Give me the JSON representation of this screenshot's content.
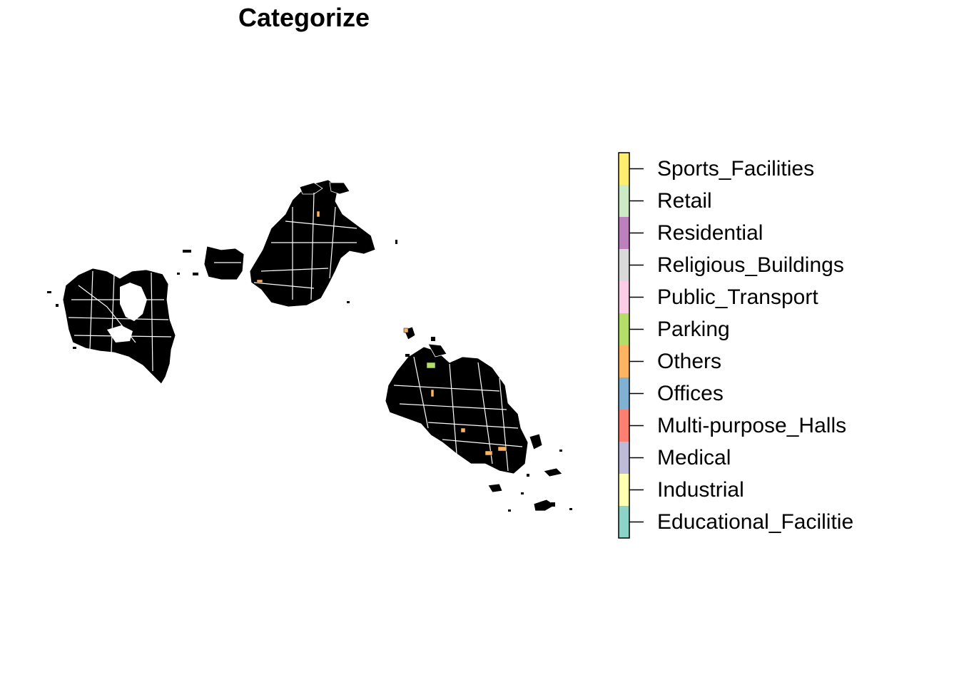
{
  "title": "Categorize",
  "legend": {
    "categories": [
      {
        "label": "Sports_Facilities",
        "color": "#ffed6f"
      },
      {
        "label": "Retail",
        "color": "#ccebc5"
      },
      {
        "label": "Residential",
        "color": "#bc80bd"
      },
      {
        "label": "Religious_Buildings",
        "color": "#d9d9d9"
      },
      {
        "label": "Public_Transport",
        "color": "#fccde5"
      },
      {
        "label": "Parking",
        "color": "#b3de69"
      },
      {
        "label": "Others",
        "color": "#fdb462"
      },
      {
        "label": "Offices",
        "color": "#80b1d3"
      },
      {
        "label": "Multi-purpose_Halls",
        "color": "#fb8072"
      },
      {
        "label": "Medical",
        "color": "#bebada"
      },
      {
        "label": "Industrial",
        "color": "#ffffb3"
      },
      {
        "label": "Educational_Facilitie",
        "color": "#8dd3c7"
      }
    ]
  },
  "map": {
    "building_fill": "#000000",
    "highlighted_categories": [
      "Others",
      "Parking"
    ]
  }
}
